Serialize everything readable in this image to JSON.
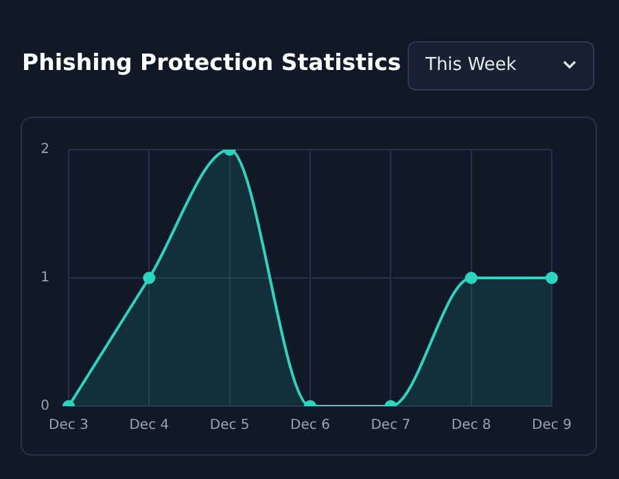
{
  "chart_data": {
    "type": "area",
    "title": "Phishing Protection Statistics",
    "annotations": [
      "This Week"
    ],
    "categories": [
      "Dec 3",
      "Dec 4",
      "Dec 5",
      "Dec 6",
      "Dec 7",
      "Dec 8",
      "Dec 9"
    ],
    "series": [
      {
        "color": "#2dd4bf",
        "values": [
          0,
          1,
          2,
          0,
          0,
          1,
          1
        ]
      }
    ],
    "ylim": [
      0,
      2
    ],
    "yticks": [
      0,
      1,
      2
    ],
    "grid": true,
    "legend": false,
    "marker": "circle",
    "line_style": "solid"
  }
}
